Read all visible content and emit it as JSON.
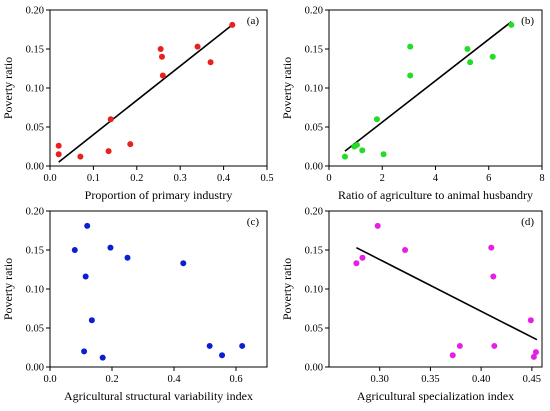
{
  "chart_data": [
    {
      "panel": "(a)",
      "type": "scatter",
      "xlabel": "Proportion of primary industry",
      "ylabel": "Poverty ratio",
      "xlim": [
        0,
        0.5
      ],
      "ylim": [
        0,
        0.2
      ],
      "xticks": [
        "0.0",
        "0.1",
        "0.2",
        "0.3",
        "0.4",
        "0.5"
      ],
      "yticks": [
        "0.00",
        "0.05",
        "0.10",
        "0.15",
        "0.20"
      ],
      "color": "#e8201e",
      "points": [
        [
          0.02,
          0.026
        ],
        [
          0.02,
          0.015
        ],
        [
          0.07,
          0.012
        ],
        [
          0.135,
          0.019
        ],
        [
          0.14,
          0.06
        ],
        [
          0.185,
          0.028
        ],
        [
          0.255,
          0.15
        ],
        [
          0.258,
          0.14
        ],
        [
          0.26,
          0.116
        ],
        [
          0.34,
          0.153
        ],
        [
          0.37,
          0.133
        ],
        [
          0.42,
          0.181
        ]
      ],
      "trendline": [
        [
          0.02,
          0.005
        ],
        [
          0.42,
          0.181
        ]
      ]
    },
    {
      "panel": "(b)",
      "type": "scatter",
      "xlabel": "Ratio of agriculture to animal husbandry",
      "ylabel": "Poverty ratio",
      "xlim": [
        0,
        8
      ],
      "ylim": [
        0,
        0.2
      ],
      "xticks": [
        "0",
        "2",
        "4",
        "6",
        "8"
      ],
      "yticks": [
        "0.00",
        "0.05",
        "0.10",
        "0.15",
        "0.20"
      ],
      "color": "#22dc28",
      "points": [
        [
          0.6,
          0.012
        ],
        [
          0.95,
          0.025
        ],
        [
          1.05,
          0.027
        ],
        [
          1.25,
          0.02
        ],
        [
          1.8,
          0.06
        ],
        [
          2.05,
          0.015
        ],
        [
          3.05,
          0.153
        ],
        [
          3.05,
          0.116
        ],
        [
          5.2,
          0.15
        ],
        [
          5.3,
          0.133
        ],
        [
          6.15,
          0.14
        ],
        [
          6.85,
          0.181
        ]
      ],
      "trendline": [
        [
          0.6,
          0.019
        ],
        [
          6.85,
          0.185
        ]
      ]
    },
    {
      "panel": "(c)",
      "type": "scatter",
      "xlabel": "Agricultural structural variability index",
      "ylabel": "Poverty ratio",
      "xlim": [
        0,
        0.7
      ],
      "ylim": [
        0,
        0.2
      ],
      "xticks": [
        "0.0",
        "0.2",
        "0.4",
        "0.6"
      ],
      "yticks": [
        "0.00",
        "0.05",
        "0.10",
        "0.15",
        "0.20"
      ],
      "color": "#0a1ed2",
      "points": [
        [
          0.08,
          0.15
        ],
        [
          0.12,
          0.181
        ],
        [
          0.115,
          0.116
        ],
        [
          0.11,
          0.02
        ],
        [
          0.135,
          0.06
        ],
        [
          0.17,
          0.012
        ],
        [
          0.195,
          0.153
        ],
        [
          0.25,
          0.14
        ],
        [
          0.43,
          0.133
        ],
        [
          0.515,
          0.027
        ],
        [
          0.555,
          0.015
        ],
        [
          0.62,
          0.027
        ]
      ]
    },
    {
      "panel": "(d)",
      "type": "scatter",
      "xlabel": "Agricultural specialization index",
      "ylabel": "Poverty ratio",
      "xlim": [
        0.25,
        0.46
      ],
      "ylim": [
        0,
        0.2
      ],
      "xticks": [
        "0.30",
        "0.35",
        "0.40",
        "0.45"
      ],
      "yticks": [
        "0.00",
        "0.05",
        "0.10",
        "0.15",
        "0.20"
      ],
      "color": "#e61ee6",
      "points": [
        [
          0.277,
          0.133
        ],
        [
          0.283,
          0.14
        ],
        [
          0.298,
          0.181
        ],
        [
          0.325,
          0.15
        ],
        [
          0.372,
          0.015
        ],
        [
          0.379,
          0.027
        ],
        [
          0.41,
          0.153
        ],
        [
          0.412,
          0.116
        ],
        [
          0.413,
          0.027
        ],
        [
          0.449,
          0.06
        ],
        [
          0.452,
          0.013
        ],
        [
          0.454,
          0.019
        ]
      ],
      "trendline": [
        [
          0.277,
          0.153
        ],
        [
          0.455,
          0.035
        ]
      ]
    }
  ]
}
